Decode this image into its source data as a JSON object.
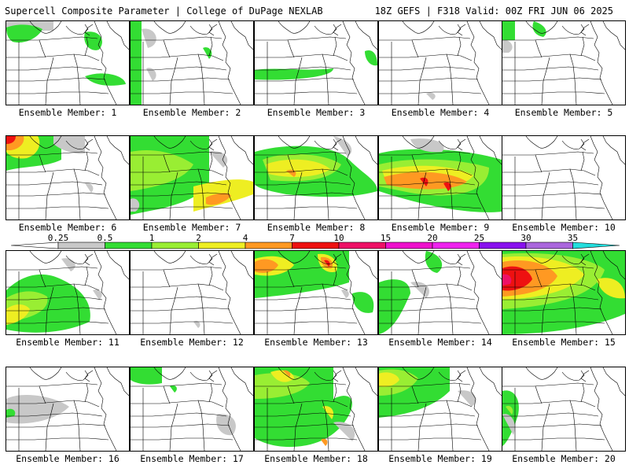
{
  "header": {
    "title_left": "Supercell Composite Parameter | College of DuPage NEXLAB",
    "title_right": "18Z GEFS | F318 Valid: 00Z FRI JUN 06 2025"
  },
  "member_prefix": "Ensemble Member:",
  "members": [
    {
      "id": "1",
      "label": "Ensemble Member: 1"
    },
    {
      "id": "2",
      "label": "Ensemble Member: 2"
    },
    {
      "id": "3",
      "label": "Ensemble Member: 3"
    },
    {
      "id": "4",
      "label": "Ensemble Member: 4"
    },
    {
      "id": "5",
      "label": "Ensemble Member: 5"
    },
    {
      "id": "6",
      "label": "Ensemble Member: 6"
    },
    {
      "id": "7",
      "label": "Ensemble Member: 7"
    },
    {
      "id": "8",
      "label": "Ensemble Member: 8"
    },
    {
      "id": "9",
      "label": "Ensemble Member: 9"
    },
    {
      "id": "10",
      "label": "Ensemble Member: 10"
    },
    {
      "id": "11",
      "label": "Ensemble Member: 11"
    },
    {
      "id": "12",
      "label": "Ensemble Member: 12"
    },
    {
      "id": "13",
      "label": "Ensemble Member: 13"
    },
    {
      "id": "14",
      "label": "Ensemble Member: 14"
    },
    {
      "id": "15",
      "label": "Ensemble Member: 15"
    },
    {
      "id": "16",
      "label": "Ensemble Member: 16"
    },
    {
      "id": "17",
      "label": "Ensemble Member: 17"
    },
    {
      "id": "18",
      "label": "Ensemble Member: 18"
    },
    {
      "id": "19",
      "label": "Ensemble Member: 19"
    },
    {
      "id": "20",
      "label": "Ensemble Member: 20"
    }
  ],
  "colorbar": {
    "ticks": [
      "0.25",
      "0.5",
      "1",
      "2",
      "4",
      "7",
      "10",
      "15",
      "20",
      "25",
      "30",
      "35"
    ],
    "colors": [
      "#c8c8c8",
      "#33dd33",
      "#99ee33",
      "#eeee22",
      "#ff9922",
      "#ee1111",
      "#ee1166",
      "#ee11cc",
      "#ee22ee",
      "#8811ee",
      "#aa66dd",
      "#22dddd"
    ]
  },
  "colors": {
    "gray": "#c8c8c8",
    "green": "#33dd33",
    "lightgreen": "#99ee33",
    "yellow": "#eeee22",
    "orange": "#ff9922",
    "red": "#ee1111",
    "magenta": "#ee1166"
  }
}
